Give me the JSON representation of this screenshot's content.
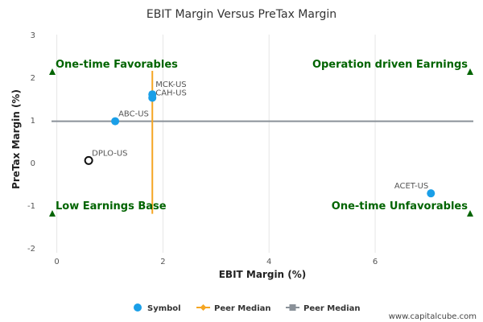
{
  "chart_data": {
    "type": "scatter",
    "title": "EBIT Margin Versus PreTax Margin",
    "xlabel": "EBIT Margin (%)",
    "ylabel": "PreTax Margin (%)",
    "xlim": [
      -0.1,
      7.85
    ],
    "ylim": [
      -2,
      3
    ],
    "xticks": [
      0,
      2,
      4,
      6
    ],
    "yticks": [
      3,
      2,
      1,
      0,
      -1,
      -2
    ],
    "points": [
      {
        "label": "MCK-US",
        "x": 1.8,
        "y": 1.6,
        "style": "filled"
      },
      {
        "label": "CAH-US",
        "x": 1.8,
        "y": 1.52,
        "style": "filled"
      },
      {
        "label": "ABC-US",
        "x": 1.1,
        "y": 0.97,
        "style": "filled"
      },
      {
        "label": "DPLO-US",
        "x": 0.6,
        "y": 0.05,
        "style": "hollow"
      },
      {
        "label": "ACET-US",
        "x": 7.05,
        "y": -0.72,
        "style": "filled"
      }
    ],
    "peer_median_x": 1.8,
    "peer_median_y": 0.97,
    "quadrants": {
      "top_left": "One-time Favorables",
      "top_right": "Operation driven Earnings",
      "bottom_left": "Low Earnings Base",
      "bottom_right": "One-time Unfavorables"
    },
    "legend": [
      {
        "name": "Symbol",
        "color": "#1a9fe8"
      },
      {
        "name": "Peer Median",
        "color": "#f5a623"
      },
      {
        "name": "Peer Median",
        "color": "#8a9199"
      }
    ],
    "colors": {
      "point": "#1a9fe8",
      "median_x": "#f5a623",
      "median_y": "#8a9199",
      "quadrant": "#006400"
    }
  },
  "watermark": "www.capitalcube.com"
}
